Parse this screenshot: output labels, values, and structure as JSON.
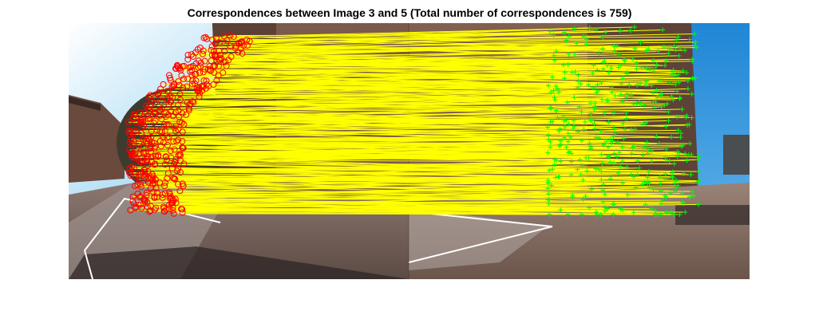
{
  "figure": {
    "title": "Correspondences between Image 3 and 5 (Total number of correspondences is 759)"
  },
  "match_style": {
    "line_color": "#ffff00",
    "source_marker_color": "#ff0000",
    "target_marker_color": "#00ff00"
  },
  "images": {
    "left_image": "photo-campus-courtyard-image-3",
    "right_image": "photo-campus-courtyard-image-5"
  }
}
